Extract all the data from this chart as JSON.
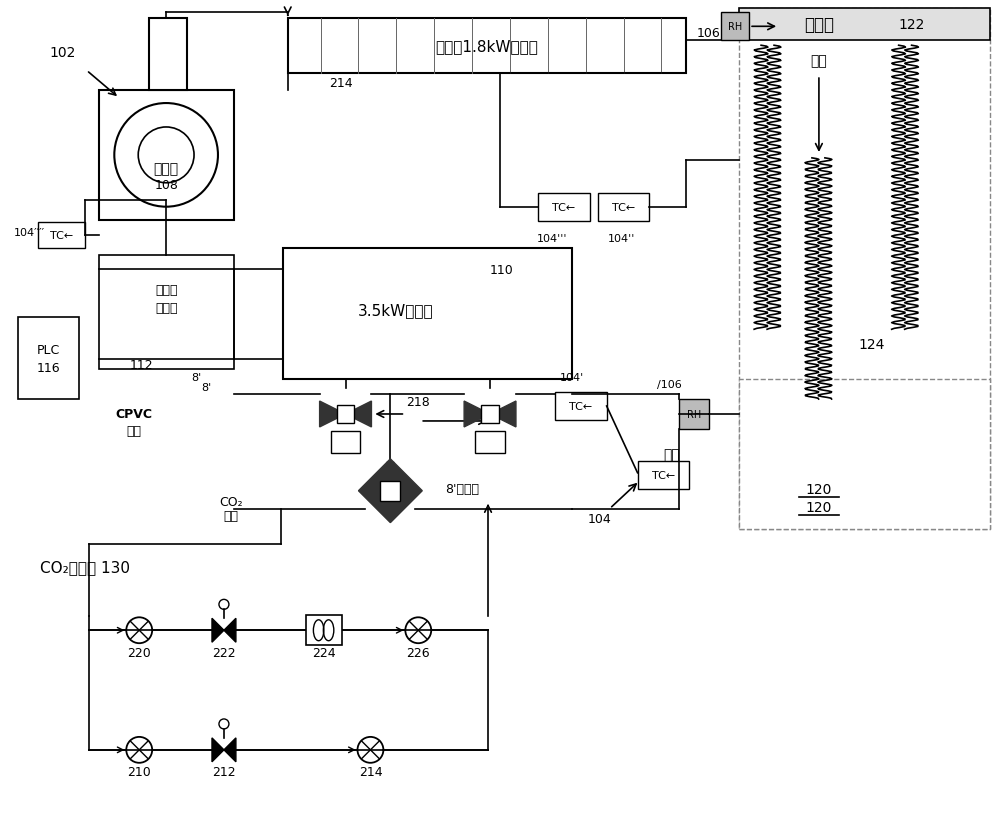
{
  "bg_color": "#ffffff",
  "line_color": "#000000",
  "box_fill": "#ffffff",
  "gray_fill": "#d0d0d0",
  "labels": {
    "blower": "鼓风机",
    "blower_num": "108",
    "heater": "十八个1.8kW加热器",
    "deep_cooler_box": "3.5kW深冷器",
    "deep_cooler_num": "110",
    "heat_exchanger1": "深冷器",
    "heat_exchanger2": "换热器",
    "heat_exchanger_num": "112",
    "plc": "PLC",
    "plc_num": "116",
    "cpvc1": "CPVC",
    "cpvc2": "管道",
    "co2_inlet1": "CO₂",
    "co2_inlet2": "入口",
    "pneumatic_valve1": "8",
    "pneumatic_valve2": "气动阀",
    "jiqi_label": "集气室",
    "jiqi_num": "122",
    "kongzhi": "控制",
    "label_124": "124",
    "label_120": "120",
    "co2_source": "CO₂供给源 130",
    "label_102": "102",
    "label_104": "104",
    "label_104p": "104",
    "label_104pp": "104",
    "label_104ppp": "104",
    "label_104pppp": "104",
    "label_106": "106",
    "label_106p": "106",
    "label_214_top": "214",
    "label_218": "218",
    "label_8p": "8",
    "label_220": "220",
    "label_222": "222",
    "label_224": "224",
    "label_226": "226",
    "label_210": "210",
    "label_212": "212",
    "label_214_bot": "214"
  }
}
